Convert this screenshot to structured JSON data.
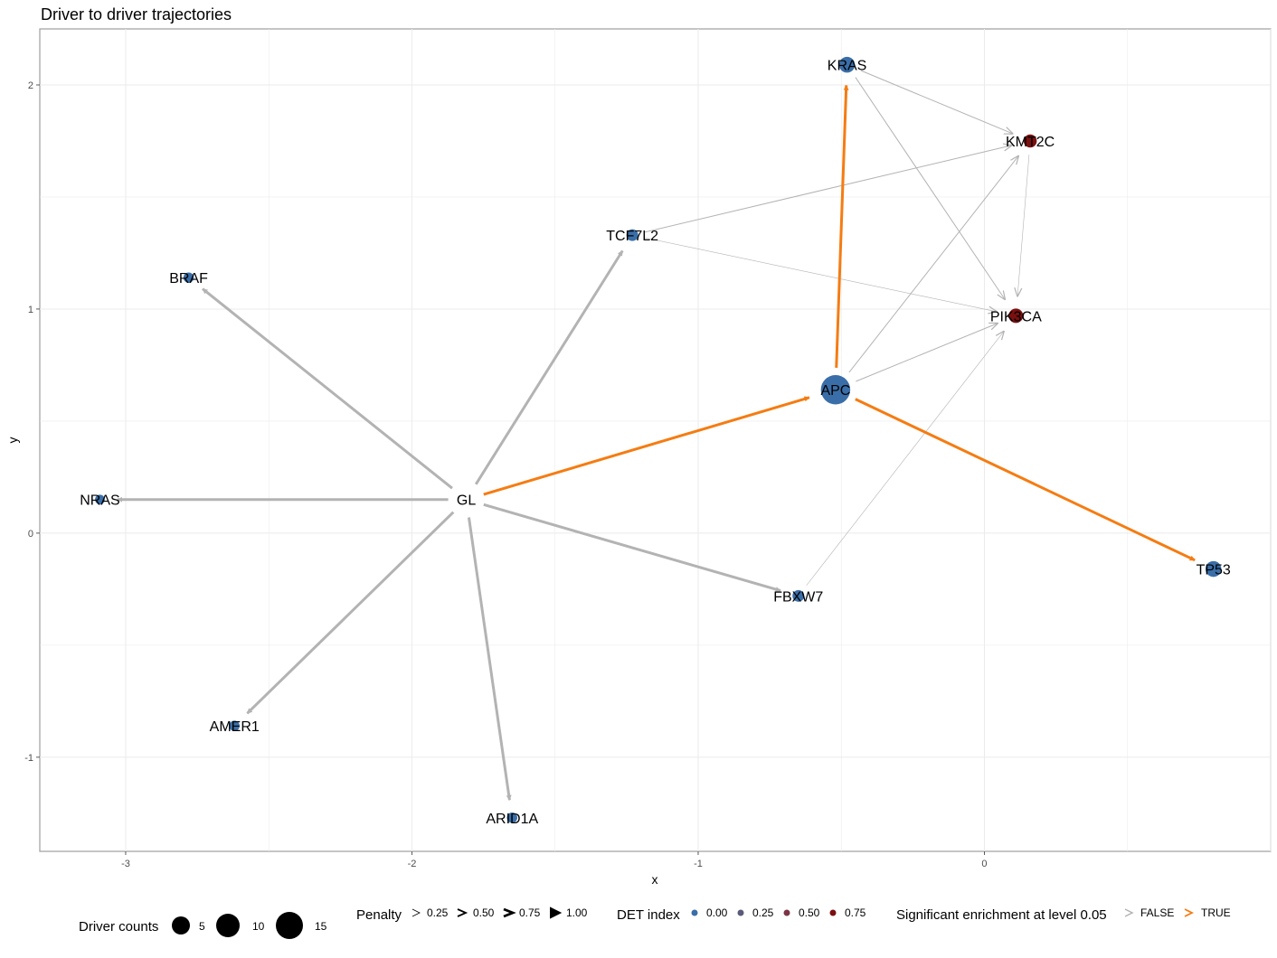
{
  "chart_data": {
    "type": "network",
    "title": "Driver to driver trajectories",
    "xlabel": "x",
    "ylabel": "y",
    "xlim": [
      -3.3,
      1.0
    ],
    "ylim": [
      -1.42,
      2.25
    ],
    "xticks": [
      -3,
      -2,
      -1,
      0
    ],
    "xtick_labels": [
      "-3",
      "-2",
      "-1",
      "0"
    ],
    "yticks": [
      -1,
      0,
      1,
      2
    ],
    "ytick_labels": [
      "-1",
      "0",
      "1",
      "2"
    ],
    "grid": true,
    "legend_position": "bottom",
    "colors": {
      "det_0": "#3a6ea8",
      "det_025": "#5a5a7a",
      "det_05": "#7b3546",
      "det_075": "#7a1010",
      "edge_false": "#b3b3b3",
      "edge_true": "#f57c12"
    },
    "nodes": [
      {
        "id": "GL",
        "label": "GL",
        "x": -1.81,
        "y": 0.15,
        "count": 0,
        "det": 0
      },
      {
        "id": "KRAS",
        "label": "KRAS",
        "x": -0.48,
        "y": 2.09,
        "count": 5,
        "det": 0
      },
      {
        "id": "KMT2C",
        "label": "KMT2C",
        "x": 0.16,
        "y": 1.75,
        "count": 3,
        "det": 0.75
      },
      {
        "id": "TCF7L2",
        "label": "TCF7L2",
        "x": -1.23,
        "y": 1.33,
        "count": 2,
        "det": 0
      },
      {
        "id": "BRAF",
        "label": "BRAF",
        "x": -2.78,
        "y": 1.14,
        "count": 1,
        "det": 0
      },
      {
        "id": "PIK3CA",
        "label": "PIK3CA",
        "x": 0.11,
        "y": 0.97,
        "count": 4,
        "det": 0.75
      },
      {
        "id": "APC",
        "label": "APC",
        "x": -0.52,
        "y": 0.64,
        "count": 15,
        "det": 0
      },
      {
        "id": "NRAS",
        "label": "NRAS",
        "x": -3.09,
        "y": 0.15,
        "count": 0.5,
        "det": 0
      },
      {
        "id": "TP53",
        "label": "TP53",
        "x": 0.8,
        "y": -0.16,
        "count": 5,
        "det": 0
      },
      {
        "id": "FBXW7",
        "label": "FBXW7",
        "x": -0.65,
        "y": -0.28,
        "count": 2,
        "det": 0
      },
      {
        "id": "AMER1",
        "label": "AMER1",
        "x": -2.62,
        "y": -0.86,
        "count": 1,
        "det": 0
      },
      {
        "id": "ARID1A",
        "label": "ARID1A",
        "x": -1.65,
        "y": -1.27,
        "count": 1,
        "det": 0
      }
    ],
    "edges": [
      {
        "from": "GL",
        "to": "BRAF",
        "penalty": 0.5,
        "significant": false
      },
      {
        "from": "GL",
        "to": "NRAS",
        "penalty": 0.5,
        "significant": false
      },
      {
        "from": "GL",
        "to": "AMER1",
        "penalty": 0.5,
        "significant": false
      },
      {
        "from": "GL",
        "to": "ARID1A",
        "penalty": 0.5,
        "significant": false
      },
      {
        "from": "GL",
        "to": "TCF7L2",
        "penalty": 0.5,
        "significant": false
      },
      {
        "from": "GL",
        "to": "FBXW7",
        "penalty": 0.5,
        "significant": false
      },
      {
        "from": "GL",
        "to": "APC",
        "penalty": 0.5,
        "significant": true
      },
      {
        "from": "APC",
        "to": "KRAS",
        "penalty": 0.5,
        "significant": true
      },
      {
        "from": "APC",
        "to": "TP53",
        "penalty": 0.5,
        "significant": true
      },
      {
        "from": "APC",
        "to": "KMT2C",
        "penalty": 0.25,
        "significant": false
      },
      {
        "from": "APC",
        "to": "PIK3CA",
        "penalty": 0.25,
        "significant": false
      },
      {
        "from": "KRAS",
        "to": "KMT2C",
        "penalty": 0.25,
        "significant": false
      },
      {
        "from": "KRAS",
        "to": "PIK3CA",
        "penalty": 0.25,
        "significant": false
      },
      {
        "from": "TCF7L2",
        "to": "KMT2C",
        "penalty": 0.25,
        "significant": false
      },
      {
        "from": "TCF7L2",
        "to": "PIK3CA",
        "penalty": 0.1,
        "significant": false
      },
      {
        "from": "KMT2C",
        "to": "PIK3CA",
        "penalty": 0.1,
        "significant": false
      },
      {
        "from": "FBXW7",
        "to": "PIK3CA",
        "penalty": 0.1,
        "significant": false
      }
    ],
    "legend": {
      "driver_counts": {
        "title": "Driver counts",
        "values": [
          5,
          10,
          15
        ],
        "labels": [
          "5",
          "10",
          "15"
        ]
      },
      "penalty": {
        "title": "Penalty",
        "values": [
          0.25,
          0.5,
          0.75,
          1.0
        ],
        "labels": [
          "0.25",
          "0.50",
          "0.75",
          "1.00"
        ]
      },
      "det_index": {
        "title": "DET index",
        "values": [
          0,
          0.25,
          0.5,
          0.75
        ],
        "labels": [
          "0.00",
          "0.25",
          "0.50",
          "0.75"
        ]
      },
      "significance": {
        "title": "Significant enrichment at level 0.05",
        "labels": [
          "FALSE",
          "TRUE"
        ]
      }
    }
  }
}
